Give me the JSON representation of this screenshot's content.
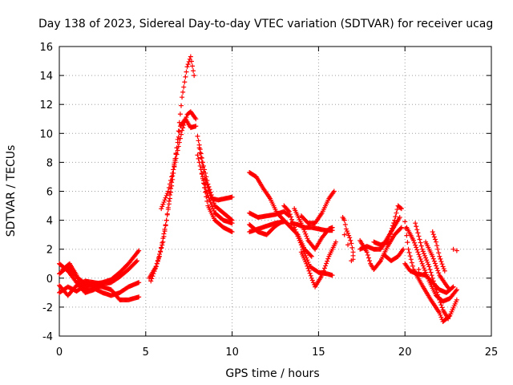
{
  "chart_data": {
    "type": "scatter",
    "title": "Day 138 of 2023, Sidereal Day-to-day VTEC variation (SDTVAR) for receiver ucag",
    "xlabel": "GPS time / hours",
    "ylabel": "SDTVAR / TECUs",
    "xlim": [
      0,
      25
    ],
    "ylim": [
      -4,
      16
    ],
    "xticks": [
      0,
      5,
      10,
      15,
      20,
      25
    ],
    "yticks": [
      -4,
      -2,
      0,
      2,
      4,
      6,
      8,
      10,
      12,
      14,
      16
    ],
    "grid": true,
    "marker": "+",
    "marker_color": "#ff0000",
    "series": [
      {
        "name": "track-01",
        "points": [
          [
            0,
            1.0
          ],
          [
            0.5,
            0.5
          ],
          [
            1,
            -0.3
          ],
          [
            1.5,
            -0.8
          ],
          [
            2,
            -0.7
          ],
          [
            2.5,
            -1.0
          ],
          [
            3,
            -1.2
          ],
          [
            3.5,
            -1.0
          ],
          [
            4,
            -0.6
          ],
          [
            4.6,
            -0.3
          ]
        ]
      },
      {
        "name": "track-02",
        "points": [
          [
            0,
            -1.0
          ],
          [
            0.5,
            -0.6
          ],
          [
            1,
            -0.9
          ],
          [
            1.5,
            -0.5
          ],
          [
            2,
            -0.4
          ],
          [
            2.5,
            -0.3
          ],
          [
            3,
            -0.1
          ],
          [
            3.5,
            0.4
          ],
          [
            4,
            1.0
          ],
          [
            4.6,
            1.9
          ]
        ]
      },
      {
        "name": "track-03",
        "points": [
          [
            0,
            0.3
          ],
          [
            0.5,
            0.8
          ],
          [
            1,
            0.1
          ],
          [
            1.5,
            -0.4
          ],
          [
            2,
            -0.5
          ],
          [
            2.5,
            -0.6
          ],
          [
            3,
            -0.8
          ],
          [
            3.5,
            -1.5
          ],
          [
            4,
            -1.5
          ],
          [
            4.6,
            -1.3
          ]
        ]
      },
      {
        "name": "track-04",
        "points": [
          [
            0,
            -0.5
          ],
          [
            0.5,
            -1.2
          ],
          [
            1,
            -0.5
          ],
          [
            1.5,
            -0.2
          ],
          [
            2,
            -0.3
          ],
          [
            2.5,
            -0.4
          ],
          [
            3,
            -0.3
          ],
          [
            3.5,
            0.1
          ],
          [
            4,
            0.6
          ],
          [
            4.5,
            1.2
          ]
        ]
      },
      {
        "name": "track-05",
        "points": [
          [
            0.2,
            0.6
          ],
          [
            0.6,
            1.0
          ],
          [
            1,
            0.2
          ],
          [
            1.2,
            -0.6
          ],
          [
            1.5,
            -1.0
          ],
          [
            2,
            -0.8
          ],
          [
            2.5,
            -0.4
          ]
        ]
      },
      {
        "name": "track-06",
        "points": [
          [
            5.2,
            0
          ],
          [
            5.6,
            0.8
          ],
          [
            6,
            2.5
          ],
          [
            6.4,
            5.5
          ],
          [
            6.8,
            9.0
          ],
          [
            7.1,
            12.5
          ],
          [
            7.4,
            14.6
          ],
          [
            7.6,
            15.3
          ],
          [
            7.8,
            14.0
          ]
        ]
      },
      {
        "name": "track-07",
        "points": [
          [
            5.9,
            4.8
          ],
          [
            6.3,
            6.0
          ],
          [
            6.7,
            8.0
          ],
          [
            7.1,
            10.2
          ],
          [
            7.4,
            11.3
          ],
          [
            7.6,
            11.5
          ],
          [
            7.9,
            11.0
          ]
        ]
      },
      {
        "name": "track-08",
        "points": [
          [
            5.3,
            -0.2
          ],
          [
            5.8,
            1.5
          ],
          [
            6.2,
            4.0
          ],
          [
            6.6,
            7.5
          ],
          [
            7.0,
            10.5
          ],
          [
            7.3,
            11.0
          ],
          [
            7.6,
            10.4
          ],
          [
            7.9,
            10.5
          ]
        ]
      },
      {
        "name": "track-09",
        "points": [
          [
            8.0,
            9.8
          ],
          [
            8.3,
            8.0
          ],
          [
            8.6,
            6.5
          ],
          [
            9.0,
            5.0
          ],
          [
            9.5,
            4.5
          ],
          [
            10.0,
            4.0
          ]
        ]
      },
      {
        "name": "track-10",
        "points": [
          [
            8.1,
            9.0
          ],
          [
            8.4,
            7.0
          ],
          [
            8.8,
            5.5
          ],
          [
            9.2,
            5.4
          ],
          [
            9.6,
            5.5
          ],
          [
            10.0,
            5.6
          ]
        ]
      },
      {
        "name": "track-11",
        "points": [
          [
            8.2,
            7.5
          ],
          [
            8.6,
            5.0
          ],
          [
            9.0,
            4.0
          ],
          [
            9.5,
            3.5
          ],
          [
            10.0,
            3.2
          ]
        ]
      },
      {
        "name": "track-12",
        "points": [
          [
            8.0,
            8.5
          ],
          [
            8.5,
            6.0
          ],
          [
            9.0,
            4.5
          ],
          [
            9.5,
            4.0
          ],
          [
            10.0,
            3.8
          ]
        ]
      },
      {
        "name": "track-13",
        "points": [
          [
            11.0,
            7.3
          ],
          [
            11.4,
            7.0
          ],
          [
            11.8,
            6.2
          ],
          [
            12.2,
            5.5
          ],
          [
            12.6,
            4.5
          ],
          [
            13.0,
            4.0
          ],
          [
            13.4,
            3.5
          ],
          [
            13.8,
            3.0
          ],
          [
            14.2,
            2.0
          ],
          [
            14.6,
            1.5
          ]
        ]
      },
      {
        "name": "track-14",
        "points": [
          [
            11.0,
            4.5
          ],
          [
            11.5,
            4.2
          ],
          [
            12.0,
            4.3
          ],
          [
            12.5,
            4.4
          ],
          [
            13.0,
            4.6
          ],
          [
            13.3,
            4.3
          ]
        ]
      },
      {
        "name": "track-15",
        "points": [
          [
            11.0,
            3.7
          ],
          [
            11.5,
            3.2
          ],
          [
            12.0,
            3.0
          ],
          [
            12.5,
            3.6
          ],
          [
            13.0,
            4.0
          ],
          [
            13.4,
            3.5
          ]
        ]
      },
      {
        "name": "track-16",
        "points": [
          [
            11.0,
            3.2
          ],
          [
            11.5,
            3.4
          ],
          [
            12.0,
            3.6
          ],
          [
            12.5,
            3.8
          ],
          [
            13.0,
            3.9
          ]
        ]
      },
      {
        "name": "track-17",
        "points": [
          [
            13.0,
            5.0
          ],
          [
            13.3,
            4.6
          ],
          [
            13.6,
            3.5
          ],
          [
            14.0,
            2.3
          ],
          [
            14.5,
            0.8
          ],
          [
            15.0,
            0.4
          ],
          [
            15.5,
            0.3
          ],
          [
            15.8,
            0.2
          ]
        ]
      },
      {
        "name": "track-18",
        "points": [
          [
            13.6,
            4.8
          ],
          [
            14.0,
            3.8
          ],
          [
            14.4,
            2.6
          ],
          [
            14.8,
            2.0
          ],
          [
            15.2,
            2.8
          ],
          [
            15.6,
            3.4
          ],
          [
            15.8,
            3.5
          ]
        ]
      },
      {
        "name": "track-19",
        "points": [
          [
            14.0,
            1.8
          ],
          [
            14.3,
            1.0
          ],
          [
            14.6,
            0
          ],
          [
            14.8,
            -0.6
          ],
          [
            15.2,
            0.2
          ],
          [
            15.6,
            1.5
          ],
          [
            16.0,
            2.5
          ]
        ]
      },
      {
        "name": "track-20",
        "points": [
          [
            13.4,
            3.8
          ],
          [
            13.8,
            3.7
          ],
          [
            14.2,
            3.5
          ],
          [
            14.6,
            3.5
          ],
          [
            15.0,
            3.4
          ],
          [
            15.4,
            3.3
          ],
          [
            15.8,
            3.3
          ]
        ]
      },
      {
        "name": "track-21",
        "points": [
          [
            14.0,
            4.3
          ],
          [
            14.4,
            3.8
          ],
          [
            14.8,
            3.8
          ],
          [
            15.2,
            4.5
          ],
          [
            15.6,
            5.5
          ],
          [
            15.9,
            6.0
          ]
        ]
      },
      {
        "name": "track-22",
        "points": [
          [
            16.4,
            4.2
          ],
          [
            16.5,
            4.0
          ],
          [
            16.6,
            3.4
          ],
          [
            16.8,
            2.8
          ],
          [
            16.9,
            2.4
          ],
          [
            17.0,
            1.8
          ],
          [
            17.0,
            1.3
          ]
        ]
      },
      {
        "name": "track-23",
        "points": [
          [
            17.4,
            2.6
          ],
          [
            17.8,
            1.8
          ],
          [
            18.0,
            1.0
          ],
          [
            18.2,
            0.6
          ],
          [
            18.6,
            1.2
          ],
          [
            19.0,
            2.2
          ],
          [
            19.4,
            3.0
          ],
          [
            19.8,
            3.5
          ]
        ]
      },
      {
        "name": "track-24",
        "points": [
          [
            17.4,
            2.0
          ],
          [
            17.8,
            2.2
          ],
          [
            18.2,
            2.0
          ],
          [
            18.6,
            2.0
          ],
          [
            19.0,
            2.8
          ],
          [
            19.4,
            3.6
          ],
          [
            19.7,
            4.2
          ]
        ]
      },
      {
        "name": "track-25",
        "points": [
          [
            18.2,
            2.5
          ],
          [
            18.6,
            2.3
          ],
          [
            19.0,
            2.5
          ],
          [
            19.4,
            4.0
          ],
          [
            19.6,
            5.0
          ],
          [
            19.8,
            4.8
          ]
        ]
      },
      {
        "name": "track-26",
        "points": [
          [
            18.8,
            1.6
          ],
          [
            19.2,
            1.2
          ],
          [
            19.6,
            1.5
          ],
          [
            19.9,
            2.0
          ]
        ]
      },
      {
        "name": "track-27",
        "points": [
          [
            20.0,
            3.9
          ],
          [
            20.2,
            2.0
          ],
          [
            20.5,
            0.6
          ],
          [
            21.0,
            -0.5
          ],
          [
            21.5,
            -1.5
          ],
          [
            22.0,
            -2.4
          ],
          [
            22.2,
            -3.0
          ],
          [
            22.6,
            -2.6
          ],
          [
            23.0,
            -1.5
          ]
        ]
      },
      {
        "name": "track-28",
        "points": [
          [
            20.0,
            1.0
          ],
          [
            20.3,
            0.5
          ],
          [
            20.7,
            0.3
          ],
          [
            21.2,
            0.2
          ],
          [
            21.6,
            -0.3
          ],
          [
            22.0,
            -0.8
          ],
          [
            22.4,
            -1.0
          ],
          [
            22.8,
            -0.6
          ]
        ]
      },
      {
        "name": "track-29",
        "points": [
          [
            20.1,
            3.5
          ],
          [
            20.5,
            2.6
          ],
          [
            21.0,
            1.0
          ],
          [
            21.4,
            -0.2
          ],
          [
            21.8,
            -1.2
          ],
          [
            22.2,
            -1.6
          ],
          [
            22.6,
            -1.4
          ],
          [
            23.0,
            -0.8
          ]
        ]
      },
      {
        "name": "track-30",
        "points": [
          [
            20.6,
            3.8
          ],
          [
            21.0,
            2.0
          ],
          [
            21.4,
            0.8
          ],
          [
            21.8,
            -0.8
          ],
          [
            22.2,
            -2.2
          ],
          [
            22.5,
            -2.8
          ]
        ]
      },
      {
        "name": "track-31",
        "points": [
          [
            21.2,
            2.5
          ],
          [
            21.6,
            1.5
          ],
          [
            22.0,
            0.2
          ],
          [
            22.4,
            -0.5
          ],
          [
            22.6,
            -0.8
          ]
        ]
      },
      {
        "name": "track-32",
        "points": [
          [
            21.6,
            3.2
          ],
          [
            21.8,
            2.5
          ],
          [
            22.0,
            1.5
          ],
          [
            22.2,
            0.8
          ],
          [
            22.3,
            0.5
          ]
        ]
      }
    ],
    "isolated_points": [
      [
        16.5,
        3.0
      ],
      [
        16.7,
        2.3
      ],
      [
        16.9,
        1.2
      ],
      [
        20.8,
        0.6
      ],
      [
        22.8,
        2.0
      ],
      [
        23.0,
        1.9
      ]
    ]
  }
}
